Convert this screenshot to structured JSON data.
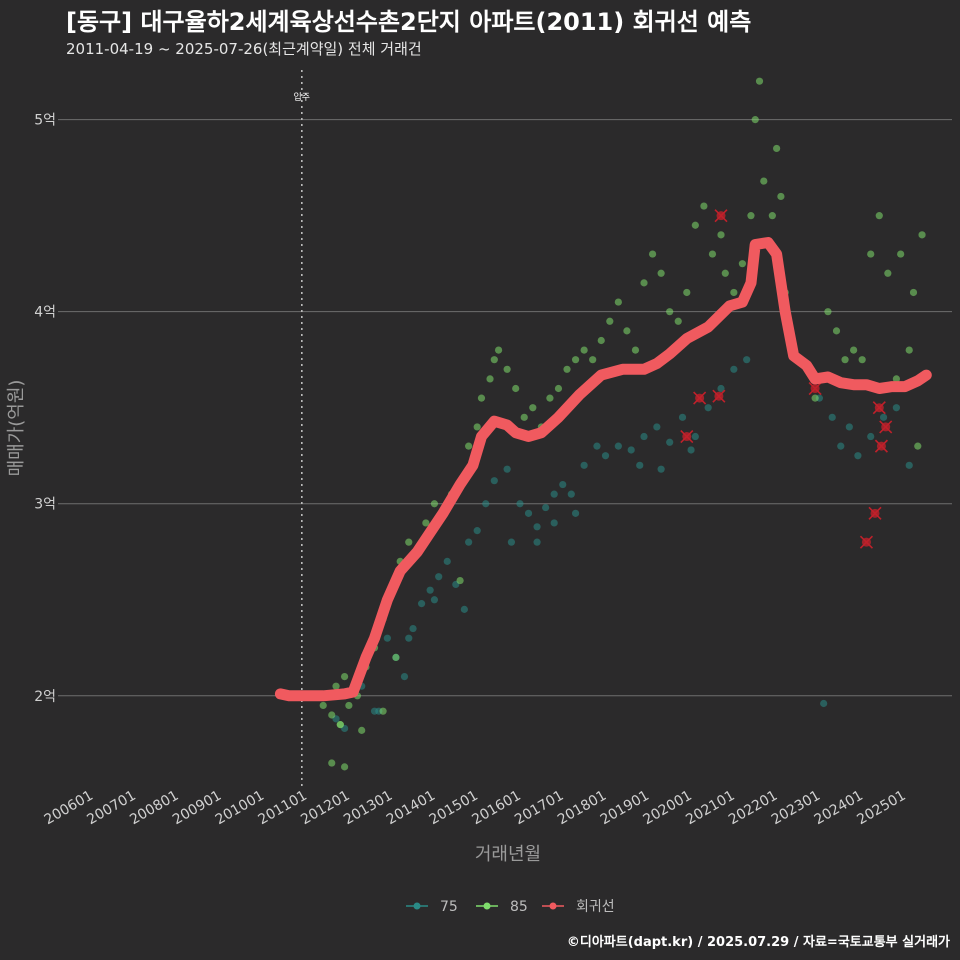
{
  "header": {
    "title": "[동구] 대구율하2세계육상선수촌2단지 아파트(2011) 회귀선 예측",
    "subtitle": "2011-04-19 ~ 2025-07-26(최근계약일) 전체 거래건"
  },
  "credit": "©디아파트(dapt.kr) / 2025.07.29 / 자료=국토교통부 실거래가",
  "colors": {
    "background": "#2b2a2b",
    "grid": "#6e6e6e",
    "series_75": "#2a8a86",
    "series_85": "#7fdc6c",
    "regression": "#f05a5f",
    "outlier": "#c0202a"
  },
  "chart_data": {
    "type": "scatter",
    "xlabel": "거래년월",
    "ylabel": "매매가(억원)",
    "x_ticks": [
      "200601",
      "200701",
      "200801",
      "200901",
      "201001",
      "201101",
      "201201",
      "201301",
      "201401",
      "201501",
      "201601",
      "201701",
      "201801",
      "201901",
      "202001",
      "202101",
      "202201",
      "202301",
      "202401",
      "202501"
    ],
    "y_ticks": [
      "2억",
      "3억",
      "4억",
      "5억"
    ],
    "y_tick_values": [
      2,
      3,
      4,
      5
    ],
    "xlim": [
      2005.3,
      2026.2
    ],
    "ylim": [
      1.52,
      5.3
    ],
    "grid": "horizontal",
    "vline": {
      "x": 2011.0,
      "label": "입주"
    },
    "legend": {
      "position": "bottom",
      "items": [
        "75",
        "85",
        "회귀선"
      ]
    },
    "regression_line": [
      [
        2010.5,
        2.01
      ],
      [
        2010.7,
        2.0
      ],
      [
        2011.0,
        2.0
      ],
      [
        2011.5,
        2.0
      ],
      [
        2012.0,
        2.01
      ],
      [
        2012.2,
        2.02
      ],
      [
        2012.5,
        2.2
      ],
      [
        2012.7,
        2.3
      ],
      [
        2013.0,
        2.5
      ],
      [
        2013.3,
        2.65
      ],
      [
        2013.7,
        2.75
      ],
      [
        2014.0,
        2.85
      ],
      [
        2014.3,
        2.95
      ],
      [
        2014.7,
        3.1
      ],
      [
        2015.0,
        3.2
      ],
      [
        2015.2,
        3.35
      ],
      [
        2015.5,
        3.43
      ],
      [
        2015.8,
        3.41
      ],
      [
        2016.0,
        3.37
      ],
      [
        2016.3,
        3.35
      ],
      [
        2016.6,
        3.37
      ],
      [
        2017.0,
        3.45
      ],
      [
        2017.5,
        3.57
      ],
      [
        2018.0,
        3.67
      ],
      [
        2018.5,
        3.7
      ],
      [
        2019.0,
        3.7
      ],
      [
        2019.3,
        3.73
      ],
      [
        2019.6,
        3.78
      ],
      [
        2020.0,
        3.86
      ],
      [
        2020.5,
        3.92
      ],
      [
        2021.0,
        4.03
      ],
      [
        2021.3,
        4.05
      ],
      [
        2021.5,
        4.15
      ],
      [
        2021.6,
        4.35
      ],
      [
        2021.9,
        4.36
      ],
      [
        2022.1,
        4.3
      ],
      [
        2022.3,
        4.0
      ],
      [
        2022.5,
        3.77
      ],
      [
        2022.8,
        3.72
      ],
      [
        2023.0,
        3.65
      ],
      [
        2023.3,
        3.66
      ],
      [
        2023.6,
        3.63
      ],
      [
        2023.9,
        3.62
      ],
      [
        2024.2,
        3.62
      ],
      [
        2024.5,
        3.6
      ],
      [
        2024.8,
        3.61
      ],
      [
        2025.1,
        3.61
      ],
      [
        2025.4,
        3.64
      ],
      [
        2025.6,
        3.67
      ]
    ],
    "outliers": [
      [
        2020.0,
        3.35
      ],
      [
        2020.3,
        3.55
      ],
      [
        2020.8,
        4.5
      ],
      [
        2020.75,
        3.56
      ],
      [
        2023.0,
        3.6
      ],
      [
        2024.2,
        2.8
      ],
      [
        2024.4,
        2.95
      ],
      [
        2024.55,
        3.3
      ],
      [
        2024.65,
        3.4
      ],
      [
        2024.5,
        3.5
      ]
    ],
    "series": [
      {
        "name": "75",
        "points": [
          [
            2011.8,
            1.88
          ],
          [
            2012.0,
            1.83
          ],
          [
            2012.4,
            2.05
          ],
          [
            2012.8,
            1.92
          ],
          [
            2013.0,
            2.3
          ],
          [
            2013.2,
            2.2
          ],
          [
            2013.4,
            2.1
          ],
          [
            2013.6,
            2.35
          ],
          [
            2013.8,
            2.48
          ],
          [
            2014.0,
            2.55
          ],
          [
            2014.2,
            2.62
          ],
          [
            2014.4,
            2.7
          ],
          [
            2014.6,
            2.58
          ],
          [
            2014.9,
            2.8
          ],
          [
            2015.1,
            2.86
          ],
          [
            2015.3,
            3.0
          ],
          [
            2015.5,
            3.12
          ],
          [
            2015.8,
            3.18
          ],
          [
            2016.1,
            3.0
          ],
          [
            2016.3,
            2.95
          ],
          [
            2016.5,
            2.88
          ],
          [
            2016.7,
            2.98
          ],
          [
            2016.9,
            3.05
          ],
          [
            2017.1,
            3.1
          ],
          [
            2017.3,
            3.05
          ],
          [
            2017.6,
            3.2
          ],
          [
            2017.9,
            3.3
          ],
          [
            2018.1,
            3.25
          ],
          [
            2018.4,
            3.3
          ],
          [
            2018.7,
            3.28
          ],
          [
            2019.0,
            3.35
          ],
          [
            2019.3,
            3.4
          ],
          [
            2019.6,
            3.32
          ],
          [
            2019.9,
            3.45
          ],
          [
            2020.2,
            3.35
          ],
          [
            2020.5,
            3.5
          ],
          [
            2020.8,
            3.6
          ],
          [
            2021.1,
            3.7
          ],
          [
            2021.4,
            3.75
          ],
          [
            2023.1,
            3.55
          ],
          [
            2023.4,
            3.45
          ],
          [
            2023.6,
            3.3
          ],
          [
            2023.8,
            3.4
          ],
          [
            2024.0,
            3.25
          ],
          [
            2024.3,
            3.35
          ],
          [
            2024.6,
            3.45
          ],
          [
            2024.9,
            3.5
          ],
          [
            2025.2,
            3.2
          ],
          [
            2023.2,
            1.96
          ],
          [
            2015.9,
            2.8
          ],
          [
            2016.5,
            2.8
          ],
          [
            2016.9,
            2.9
          ],
          [
            2017.4,
            2.95
          ],
          [
            2014.8,
            2.45
          ],
          [
            2013.5,
            2.3
          ],
          [
            2014.1,
            2.5
          ],
          [
            2012.7,
            1.92
          ],
          [
            2018.9,
            3.2
          ],
          [
            2019.4,
            3.18
          ],
          [
            2020.1,
            3.28
          ]
        ]
      },
      {
        "name": "85",
        "points": [
          [
            2011.5,
            1.95
          ],
          [
            2011.7,
            1.9
          ],
          [
            2011.8,
            2.05
          ],
          [
            2011.9,
            1.85
          ],
          [
            2012.0,
            2.1
          ],
          [
            2012.1,
            1.95
          ],
          [
            2012.3,
            2.0
          ],
          [
            2012.5,
            2.15
          ],
          [
            2012.7,
            2.25
          ],
          [
            2012.9,
            2.4
          ],
          [
            2013.1,
            2.55
          ],
          [
            2013.3,
            2.7
          ],
          [
            2013.5,
            2.8
          ],
          [
            2013.7,
            2.75
          ],
          [
            2013.9,
            2.9
          ],
          [
            2014.1,
            3.0
          ],
          [
            2014.3,
            2.95
          ],
          [
            2014.5,
            3.05
          ],
          [
            2014.7,
            3.1
          ],
          [
            2014.9,
            3.3
          ],
          [
            2015.1,
            3.4
          ],
          [
            2015.2,
            3.55
          ],
          [
            2015.4,
            3.65
          ],
          [
            2015.5,
            3.75
          ],
          [
            2015.6,
            3.8
          ],
          [
            2015.8,
            3.7
          ],
          [
            2016.0,
            3.6
          ],
          [
            2016.2,
            3.45
          ],
          [
            2016.4,
            3.5
          ],
          [
            2016.6,
            3.4
          ],
          [
            2016.8,
            3.55
          ],
          [
            2017.0,
            3.6
          ],
          [
            2017.2,
            3.7
          ],
          [
            2017.4,
            3.75
          ],
          [
            2017.6,
            3.8
          ],
          [
            2017.8,
            3.75
          ],
          [
            2018.0,
            3.85
          ],
          [
            2018.2,
            3.95
          ],
          [
            2018.4,
            4.05
          ],
          [
            2018.6,
            3.9
          ],
          [
            2018.8,
            3.8
          ],
          [
            2019.0,
            4.15
          ],
          [
            2019.2,
            4.3
          ],
          [
            2019.4,
            4.2
          ],
          [
            2019.6,
            4.0
          ],
          [
            2019.8,
            3.95
          ],
          [
            2020.0,
            4.1
          ],
          [
            2020.2,
            4.45
          ],
          [
            2020.4,
            4.55
          ],
          [
            2020.6,
            4.3
          ],
          [
            2020.8,
            4.4
          ],
          [
            2020.9,
            4.2
          ],
          [
            2021.1,
            4.1
          ],
          [
            2021.3,
            4.25
          ],
          [
            2021.5,
            4.5
          ],
          [
            2021.6,
            5.0
          ],
          [
            2021.7,
            5.2
          ],
          [
            2021.8,
            4.68
          ],
          [
            2022.0,
            4.5
          ],
          [
            2022.1,
            4.85
          ],
          [
            2022.2,
            4.6
          ],
          [
            2022.3,
            4.1
          ],
          [
            2023.0,
            3.55
          ],
          [
            2023.3,
            4.0
          ],
          [
            2023.5,
            3.9
          ],
          [
            2023.7,
            3.75
          ],
          [
            2023.9,
            3.8
          ],
          [
            2024.1,
            3.75
          ],
          [
            2024.3,
            4.3
          ],
          [
            2024.5,
            4.5
          ],
          [
            2024.7,
            4.2
          ],
          [
            2024.9,
            3.65
          ],
          [
            2025.0,
            4.3
          ],
          [
            2025.2,
            3.8
          ],
          [
            2025.3,
            4.1
          ],
          [
            2025.5,
            4.4
          ],
          [
            2025.4,
            3.3
          ],
          [
            2013.2,
            2.2
          ],
          [
            2011.9,
            1.85
          ],
          [
            2011.7,
            1.65
          ],
          [
            2012.0,
            1.63
          ],
          [
            2012.4,
            1.82
          ],
          [
            2012.9,
            1.92
          ],
          [
            2014.7,
            2.6
          ]
        ]
      }
    ]
  }
}
